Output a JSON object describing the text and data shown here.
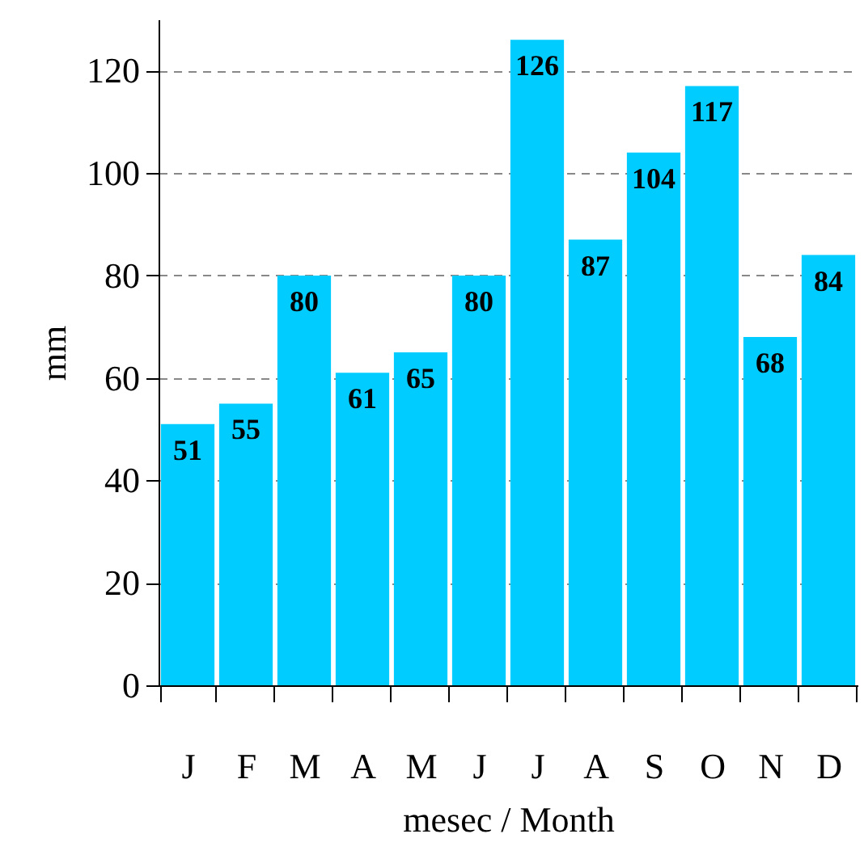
{
  "chart_data": {
    "type": "bar",
    "xlabel": "mesec / Month",
    "ylabel": "mm",
    "categories": [
      "J",
      "F",
      "M",
      "A",
      "M",
      "J",
      "J",
      "A",
      "S",
      "O",
      "N",
      "D"
    ],
    "values": [
      51,
      55,
      80,
      61,
      65,
      80,
      126,
      87,
      104,
      117,
      68,
      84
    ],
    "color": "#00ccff",
    "ylim": [
      0,
      130
    ],
    "yticks": [
      0,
      20,
      40,
      60,
      80,
      100,
      120
    ],
    "grid": "y",
    "data_labels": true
  }
}
